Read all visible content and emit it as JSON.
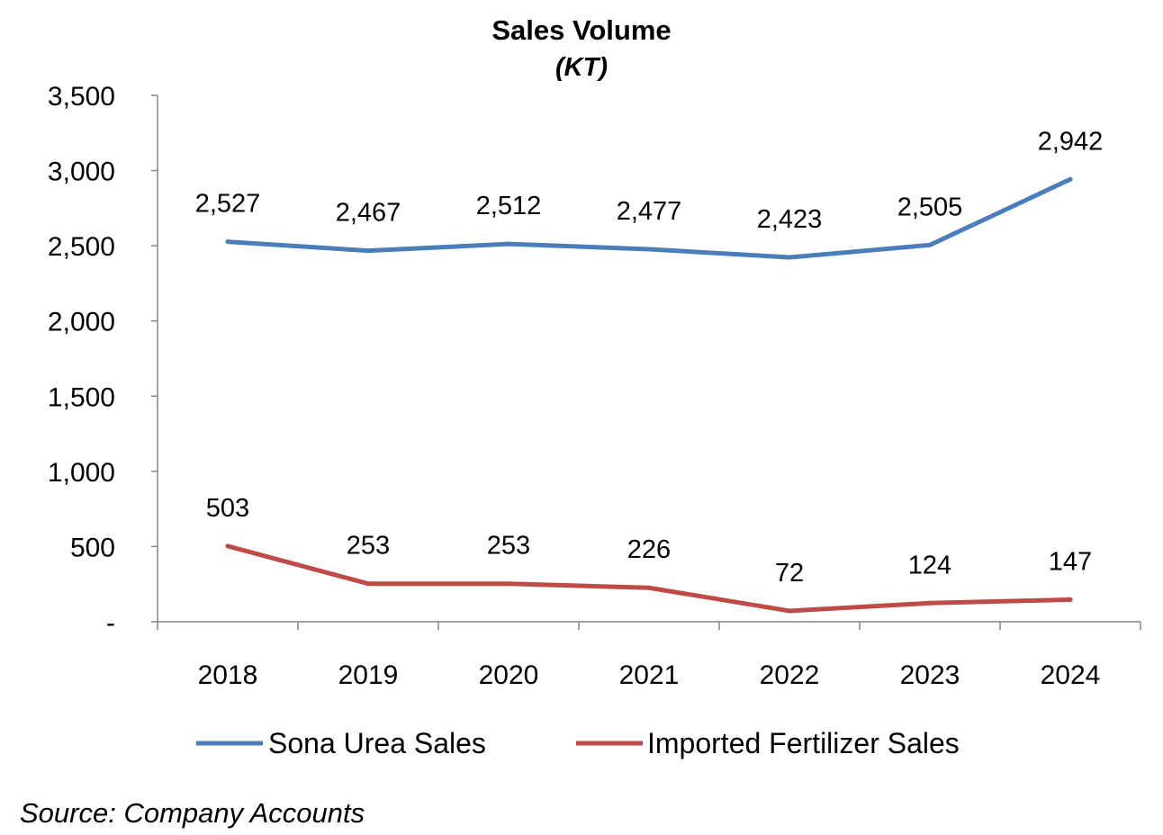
{
  "chart_data": {
    "type": "line",
    "title": "Sales Volume",
    "subtitle": "(KT)",
    "categories": [
      "2018",
      "2019",
      "2020",
      "2021",
      "2022",
      "2023",
      "2024"
    ],
    "series": [
      {
        "name": "Sona Urea Sales",
        "color": "#4a7ebb",
        "values": [
          2527,
          2467,
          2512,
          2477,
          2423,
          2505,
          2942
        ],
        "labels": [
          "2,527",
          "2,467",
          "2,512",
          "2,477",
          "2,423",
          "2,505",
          "2,942"
        ]
      },
      {
        "name": "Imported Fertilizer Sales",
        "color": "#be4b48",
        "values": [
          503,
          253,
          253,
          226,
          72,
          124,
          147
        ],
        "labels": [
          "503",
          "253",
          "253",
          "226",
          "72",
          "124",
          "147"
        ]
      }
    ],
    "ylim": [
      0,
      3500
    ],
    "yticks": [
      0,
      500,
      1000,
      1500,
      2000,
      2500,
      3000,
      3500
    ],
    "ytick_labels": [
      "-",
      "500",
      "1,000",
      "1,500",
      "2,000",
      "2,500",
      "3,000",
      "3,500"
    ],
    "grid": false,
    "legend": "bottom",
    "xlabel": "",
    "ylabel": ""
  },
  "source": "Source: Company Accounts"
}
